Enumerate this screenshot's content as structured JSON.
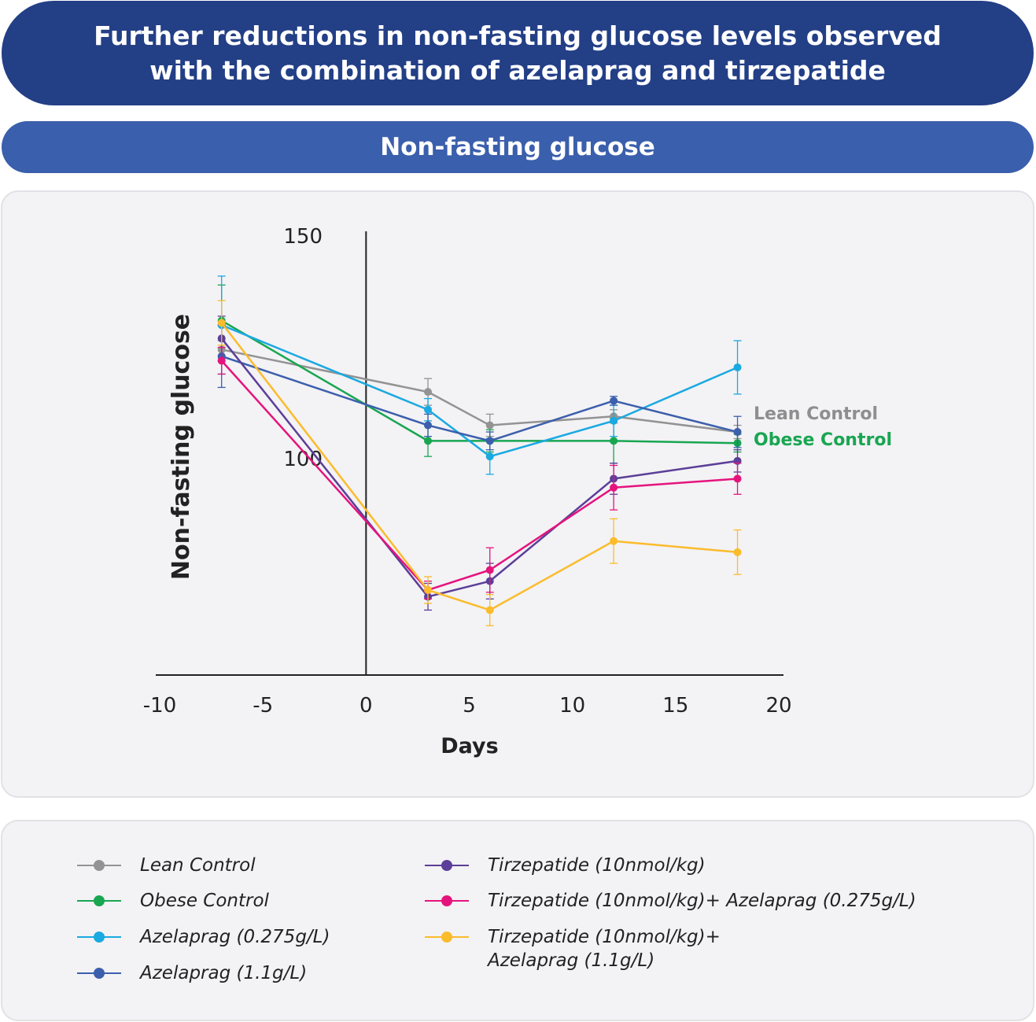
{
  "header": {
    "title": "Further reductions in non-fasting glucose levels observed with the combination of azelaprag and tirzepatide",
    "subtitle": "Non-fasting glucose"
  },
  "chart_data": {
    "type": "line",
    "xlabel": "Days",
    "ylabel": "Non-fasting glucose",
    "xlim": [
      -10,
      20
    ],
    "ylim": [
      50,
      150
    ],
    "x_ticks": [
      "-10",
      "-5",
      "0",
      "5",
      "10",
      "15",
      "20"
    ],
    "x_tick_values": [
      -10,
      -5,
      0,
      5,
      10,
      15,
      20
    ],
    "y_ticks": [
      "150",
      "100"
    ],
    "y_tick_values": [
      150,
      100
    ],
    "grid": false,
    "x": [
      -7,
      3,
      6,
      12,
      18
    ],
    "series": [
      {
        "name": "Lean Control",
        "color": "#939393",
        "values": [
          124.5,
          115,
          107.5,
          109.5,
          106
        ],
        "errors": [
          2,
          3,
          2.5,
          1.5,
          1.5
        ]
      },
      {
        "name": "Obese Control",
        "color": "#18a651",
        "values": [
          131,
          104,
          104,
          104,
          103.5
        ],
        "errors": [
          8,
          3.5,
          2.5,
          5,
          2
        ]
      },
      {
        "name": "Azelaprag (0.275g/L)",
        "color": "#1aa9e1",
        "values": [
          130,
          111,
          100.5,
          108.5,
          120.5
        ],
        "errors": [
          11,
          2.5,
          4,
          3.5,
          6
        ]
      },
      {
        "name": "Azelaprag (1.1g/L)",
        "color": "#3c5fac",
        "values": [
          123,
          107.5,
          104,
          113,
          106
        ],
        "errors": [
          7,
          2.5,
          2,
          1,
          3.5
        ]
      },
      {
        "name": "Tirzepatide (10nmol/kg)",
        "color": "#5b3f98",
        "values": [
          127,
          69,
          72.5,
          95.5,
          99.5
        ],
        "errors": [
          5,
          3,
          4,
          3.5,
          2.5
        ]
      },
      {
        "name": "Tirzepatide (10nmol/kg)+ Azelaprag (0.275g/L)",
        "color": "#e5147d",
        "values": [
          122,
          70.5,
          75,
          93.5,
          95.5
        ],
        "errors": [
          3,
          2,
          5,
          5,
          3.5
        ]
      },
      {
        "name": "Tirzepatide (10nmol/kg)+\nAzelaprag (1.1g/L)",
        "color": "#fbbc2c",
        "values": [
          130.5,
          70.5,
          66,
          81.5,
          79
        ],
        "errors": [
          5,
          3,
          3.5,
          5,
          5
        ]
      }
    ],
    "annotations": [
      {
        "text": "Lean Control",
        "color": "#8e8e8e"
      },
      {
        "text": "Obese Control",
        "color": "#18a651"
      }
    ],
    "legend_placement": "bottom"
  }
}
